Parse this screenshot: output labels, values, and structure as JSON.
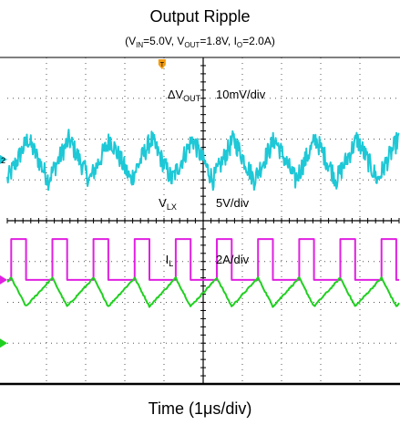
{
  "chart_data": {
    "type": "line",
    "title": "Output Ripple",
    "subtitle": {
      "prefix": "(V",
      "vin_sub": "IN",
      "vin_val": "=5.0V, V",
      "vout_sub": "OUT",
      "vout_val": "=1.8V, I",
      "io_sub": "O",
      "io_val": "=2.0A)"
    },
    "xlabel": "Time (1μs/div)",
    "x_divisions": 10,
    "y_divisions": 8,
    "grid": true,
    "time_per_div_us": 1,
    "trigger_marker": {
      "symbol": "T",
      "color": "#f39c12",
      "at_div": 0.5
    },
    "series": [
      {
        "key": "vout",
        "label_prefix": "ΔV",
        "label_sub": "OUT",
        "scale": "10mV/div",
        "color": "#1ec8d6",
        "ground_marker": "2",
        "ground_level_div": 5.5,
        "waveform": "ripple",
        "period_us": 1.05,
        "amplitude_mv": 5,
        "noise_mv": 2.5
      },
      {
        "key": "vlx",
        "label_prefix": "V",
        "label_sub": "LX",
        "scale": "5V/div",
        "color": "#e020e0",
        "ground_marker": "",
        "ground_level_div": 2.55,
        "waveform": "square",
        "period_us": 1.05,
        "duty_cycle": 0.36,
        "high_v": 5.0,
        "low_v": 0.0
      },
      {
        "key": "il",
        "label_prefix": "I",
        "label_sub": "L",
        "scale": "2A/div",
        "color": "#20d020",
        "ground_marker": "",
        "ground_level_div": 1.0,
        "waveform": "triangle",
        "period_us": 1.05,
        "average_a": 2.0,
        "ripple_pp_a": 0.7
      }
    ]
  },
  "colors": {
    "vout": "#1ec8d6",
    "vlx": "#e020e0",
    "il": "#20d020",
    "trigger": "#f39c12",
    "grid": "#555555"
  }
}
